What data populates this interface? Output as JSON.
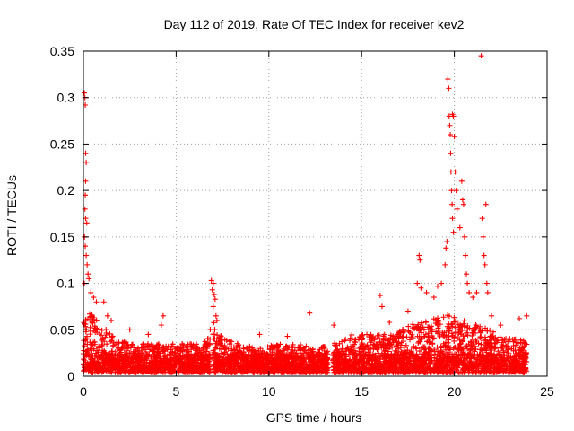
{
  "chart_data": {
    "type": "scatter",
    "title": "Day 112 of 2019, Rate Of TEC Index for receiver kev2",
    "xlabel": "GPS time / hours",
    "ylabel": "ROTI / TECUs",
    "xlim": [
      0,
      25
    ],
    "ylim": [
      0,
      0.35
    ],
    "xticks": [
      0,
      5,
      10,
      15,
      20,
      25
    ],
    "xtick_labels": [
      "0",
      "5",
      "10",
      "15",
      "20",
      "25"
    ],
    "yticks": [
      0,
      0.05,
      0.1,
      0.15,
      0.2,
      0.25,
      0.3,
      0.35
    ],
    "ytick_labels": [
      "0",
      "0.05",
      "0.1",
      "0.15",
      "0.2",
      "0.25",
      "0.3",
      "0.35"
    ],
    "grid": true,
    "marker": "plus",
    "color": "#ff0000",
    "envelope": {
      "note": "approximate upper envelope of the dense point cloud (hours, ROTI)",
      "points": [
        [
          0.0,
          0.06
        ],
        [
          0.3,
          0.07
        ],
        [
          0.8,
          0.06
        ],
        [
          1.5,
          0.045
        ],
        [
          2.5,
          0.035
        ],
        [
          3.5,
          0.035
        ],
        [
          4.5,
          0.035
        ],
        [
          5.5,
          0.035
        ],
        [
          6.5,
          0.035
        ],
        [
          7.0,
          0.06
        ],
        [
          7.5,
          0.04
        ],
        [
          8.5,
          0.035
        ],
        [
          9.5,
          0.03
        ],
        [
          10.5,
          0.035
        ],
        [
          11.5,
          0.035
        ],
        [
          12.5,
          0.03
        ],
        [
          13.5,
          0.035
        ],
        [
          14.5,
          0.045
        ],
        [
          15.5,
          0.045
        ],
        [
          16.5,
          0.045
        ],
        [
          17.5,
          0.055
        ],
        [
          18.5,
          0.06
        ],
        [
          19.5,
          0.07
        ],
        [
          20.5,
          0.06
        ],
        [
          21.5,
          0.055
        ],
        [
          22.5,
          0.045
        ],
        [
          23.5,
          0.04
        ],
        [
          23.9,
          0.04
        ]
      ]
    },
    "outliers": [
      [
        0.05,
        0.305
      ],
      [
        0.08,
        0.3
      ],
      [
        0.1,
        0.292
      ],
      [
        0.12,
        0.24
      ],
      [
        0.15,
        0.23
      ],
      [
        0.12,
        0.21
      ],
      [
        0.1,
        0.195
      ],
      [
        0.08,
        0.18
      ],
      [
        0.12,
        0.17
      ],
      [
        0.18,
        0.165
      ],
      [
        0.06,
        0.15
      ],
      [
        0.1,
        0.14
      ],
      [
        0.15,
        0.13
      ],
      [
        0.2,
        0.12
      ],
      [
        0.25,
        0.11
      ],
      [
        0.3,
        0.105
      ],
      [
        0.05,
        0.1
      ],
      [
        0.4,
        0.09
      ],
      [
        0.55,
        0.085
      ],
      [
        0.7,
        0.08
      ],
      [
        1.1,
        0.08
      ],
      [
        1.3,
        0.065
      ],
      [
        1.5,
        0.06
      ],
      [
        2.5,
        0.05
      ],
      [
        3.5,
        0.045
      ],
      [
        4.3,
        0.065
      ],
      [
        4.2,
        0.055
      ],
      [
        6.9,
        0.103
      ],
      [
        7.0,
        0.1
      ],
      [
        6.95,
        0.093
      ],
      [
        7.05,
        0.088
      ],
      [
        7.1,
        0.083
      ],
      [
        7.0,
        0.075
      ],
      [
        7.15,
        0.065
      ],
      [
        7.2,
        0.06
      ],
      [
        9.5,
        0.045
      ],
      [
        11.0,
        0.043
      ],
      [
        12.2,
        0.068
      ],
      [
        13.5,
        0.055
      ],
      [
        16.0,
        0.087
      ],
      [
        16.1,
        0.075
      ],
      [
        16.5,
        0.058
      ],
      [
        17.5,
        0.07
      ],
      [
        18.1,
        0.13
      ],
      [
        18.15,
        0.125
      ],
      [
        18.0,
        0.1
      ],
      [
        18.2,
        0.095
      ],
      [
        18.5,
        0.09
      ],
      [
        18.9,
        0.085
      ],
      [
        19.1,
        0.097
      ],
      [
        19.3,
        0.1
      ],
      [
        19.5,
        0.12
      ],
      [
        19.55,
        0.138
      ],
      [
        19.6,
        0.145
      ],
      [
        19.65,
        0.32
      ],
      [
        19.7,
        0.31
      ],
      [
        19.72,
        0.28
      ],
      [
        19.75,
        0.27
      ],
      [
        19.78,
        0.26
      ],
      [
        19.8,
        0.24
      ],
      [
        19.82,
        0.22
      ],
      [
        19.85,
        0.2
      ],
      [
        19.88,
        0.185
      ],
      [
        19.9,
        0.17
      ],
      [
        19.95,
        0.155
      ],
      [
        19.9,
        0.282
      ],
      [
        19.95,
        0.28
      ],
      [
        20.0,
        0.258
      ],
      [
        20.05,
        0.22
      ],
      [
        20.1,
        0.2
      ],
      [
        20.15,
        0.18
      ],
      [
        20.3,
        0.16
      ],
      [
        20.4,
        0.21
      ],
      [
        20.45,
        0.19
      ],
      [
        20.5,
        0.185
      ],
      [
        20.55,
        0.15
      ],
      [
        20.6,
        0.13
      ],
      [
        20.65,
        0.11
      ],
      [
        20.7,
        0.1
      ],
      [
        20.8,
        0.09
      ],
      [
        21.0,
        0.085
      ],
      [
        21.2,
        0.09
      ],
      [
        21.45,
        0.345
      ],
      [
        21.5,
        0.17
      ],
      [
        21.55,
        0.15
      ],
      [
        21.6,
        0.13
      ],
      [
        21.65,
        0.12
      ],
      [
        21.7,
        0.185
      ],
      [
        21.75,
        0.1
      ],
      [
        21.8,
        0.09
      ],
      [
        22.0,
        0.065
      ],
      [
        22.5,
        0.055
      ],
      [
        23.5,
        0.062
      ],
      [
        23.9,
        0.065
      ]
    ]
  }
}
